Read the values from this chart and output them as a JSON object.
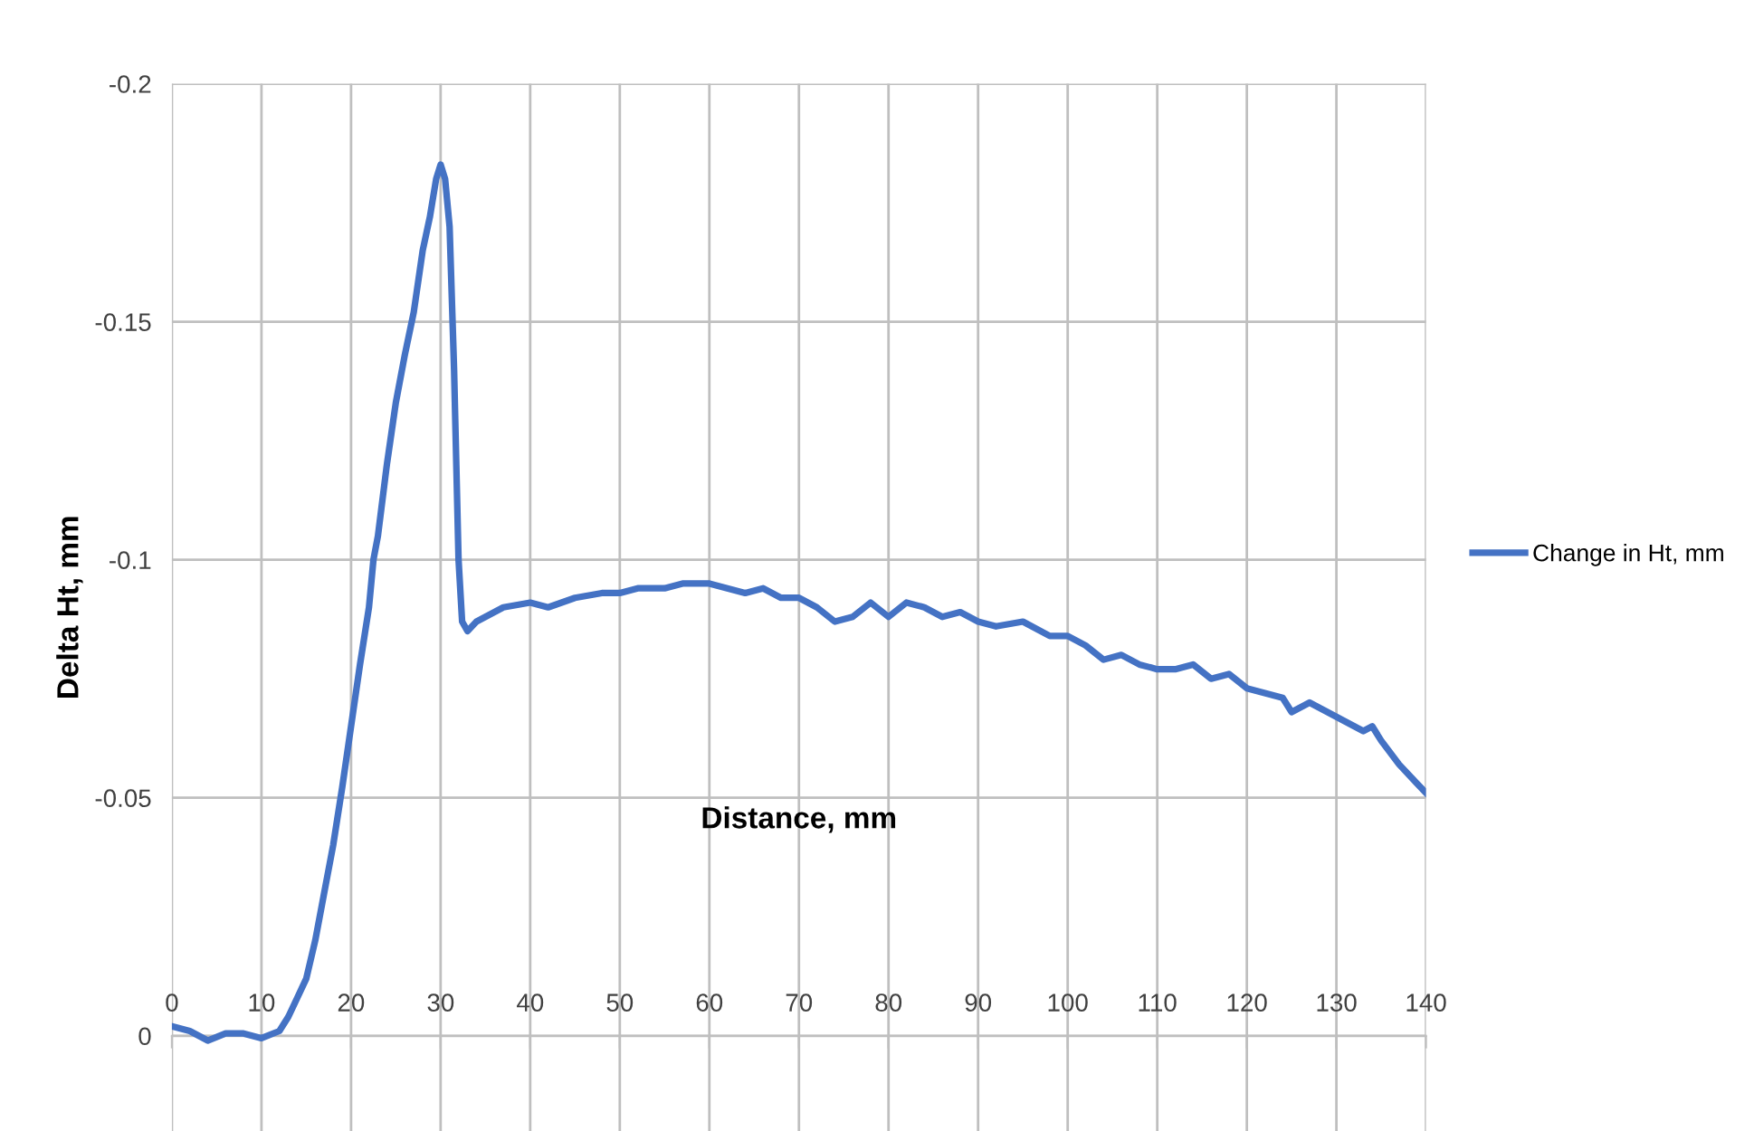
{
  "chart_data": {
    "type": "line",
    "xlabel": "Distance, mm",
    "ylabel": "Delta Ht, mm",
    "xlim": [
      0,
      140
    ],
    "xticks": [
      0,
      10,
      20,
      30,
      40,
      50,
      60,
      70,
      80,
      90,
      100,
      110,
      120,
      130,
      140
    ],
    "ylim": [
      0.02,
      -0.2
    ],
    "yticks": [
      0,
      -0.05,
      -0.1,
      -0.15,
      -0.2
    ],
    "grid": true,
    "legend": "right",
    "marker": "none",
    "line_style": "solid",
    "series": [
      {
        "name": "Change in Ht, mm",
        "color": "#4472c4",
        "x": [
          0,
          2,
          4,
          6,
          8,
          10,
          12,
          13,
          14,
          15,
          16,
          17,
          18,
          19,
          20,
          21,
          22,
          22.5,
          23,
          24,
          25,
          26,
          27,
          28,
          28.8,
          29.5,
          30,
          30.5,
          31,
          31.5,
          32,
          32.4,
          33,
          34,
          35,
          37,
          40,
          42,
          45,
          48,
          50,
          52,
          55,
          57,
          60,
          62,
          64,
          66,
          68,
          70,
          72,
          74,
          76,
          78,
          80,
          82,
          84,
          86,
          88,
          90,
          92,
          95,
          98,
          100,
          102,
          104,
          106,
          108,
          110,
          112,
          114,
          116,
          118,
          120,
          122,
          124,
          125,
          127,
          129,
          131,
          133,
          134,
          135,
          137,
          139,
          140
        ],
        "values": [
          -0.002,
          -0.001,
          0.001,
          -0.0005,
          -0.0005,
          0.0005,
          -0.001,
          -0.004,
          -0.008,
          -0.012,
          -0.02,
          -0.03,
          -0.04,
          -0.052,
          -0.065,
          -0.078,
          -0.09,
          -0.1,
          -0.105,
          -0.12,
          -0.133,
          -0.143,
          -0.152,
          -0.165,
          -0.172,
          -0.18,
          -0.183,
          -0.18,
          -0.17,
          -0.14,
          -0.1,
          -0.087,
          -0.085,
          -0.087,
          -0.088,
          -0.09,
          -0.091,
          -0.09,
          -0.092,
          -0.093,
          -0.093,
          -0.094,
          -0.094,
          -0.095,
          -0.095,
          -0.094,
          -0.093,
          -0.094,
          -0.092,
          -0.092,
          -0.09,
          -0.087,
          -0.088,
          -0.091,
          -0.088,
          -0.091,
          -0.09,
          -0.088,
          -0.089,
          -0.087,
          -0.086,
          -0.087,
          -0.084,
          -0.084,
          -0.082,
          -0.079,
          -0.08,
          -0.078,
          -0.077,
          -0.077,
          -0.078,
          -0.075,
          -0.076,
          -0.073,
          -0.072,
          -0.071,
          -0.068,
          -0.07,
          -0.068,
          -0.066,
          -0.064,
          -0.065,
          -0.062,
          -0.057,
          -0.053,
          -0.051
        ]
      }
    ]
  }
}
